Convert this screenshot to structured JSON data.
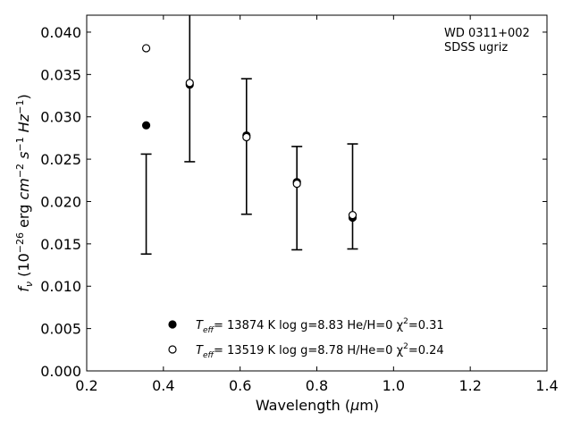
{
  "chart_data": {
    "type": "scatter",
    "annotation": [
      "WD 0311+002",
      "SDSS ugriz"
    ],
    "xlabel": "Wavelength (μm)",
    "ylabel": "f_ν (10^-26 erg cm^-2 s^-1 Hz^-1)",
    "xlim": [
      0.2,
      1.4
    ],
    "ylim": [
      0.0,
      0.042
    ],
    "xticks": [
      0.2,
      0.4,
      0.6,
      0.8,
      1.0,
      1.2,
      1.4
    ],
    "xtick_labels": [
      "0.2",
      "0.4",
      "0.6",
      "0.8",
      "1.0",
      "1.2",
      "1.4"
    ],
    "yticks": [
      0.0,
      0.005,
      0.01,
      0.015,
      0.02,
      0.025,
      0.03,
      0.035,
      0.04
    ],
    "ytick_labels": [
      "0.000",
      "0.005",
      "0.010",
      "0.015",
      "0.020",
      "0.025",
      "0.030",
      "0.035",
      "0.040"
    ],
    "grid": false,
    "observed": {
      "x": [
        0.3551,
        0.4686,
        0.6166,
        0.748,
        0.8932
      ],
      "y": [
        0.0197,
        0.0343,
        0.0265,
        0.0204,
        0.0206
      ],
      "yerr": [
        0.0059,
        0.0096,
        0.008,
        0.0061,
        0.0062
      ]
    },
    "series": [
      {
        "marker": "filled",
        "label_parts": [
          "T",
          "eff",
          "= 13874 K  log g=8.83  He/H=0  χ",
          "2",
          "=0.31"
        ],
        "x": [
          0.3551,
          0.4686,
          0.6166,
          0.748,
          0.8932
        ],
        "y": [
          0.029,
          0.0338,
          0.0278,
          0.0223,
          0.0181
        ]
      },
      {
        "marker": "open",
        "label_parts": [
          "T",
          "eff",
          "= 13519 K  log g=8.78  H/He=0  χ",
          "2",
          "=0.24"
        ],
        "x": [
          0.3551,
          0.4686,
          0.6166,
          0.748,
          0.8932
        ],
        "y": [
          0.0381,
          0.034,
          0.0276,
          0.0221,
          0.0184
        ]
      }
    ],
    "legend_location": "lower center",
    "colors": {
      "axes": "#000000",
      "markers": "#000000",
      "background": "#ffffff"
    }
  }
}
